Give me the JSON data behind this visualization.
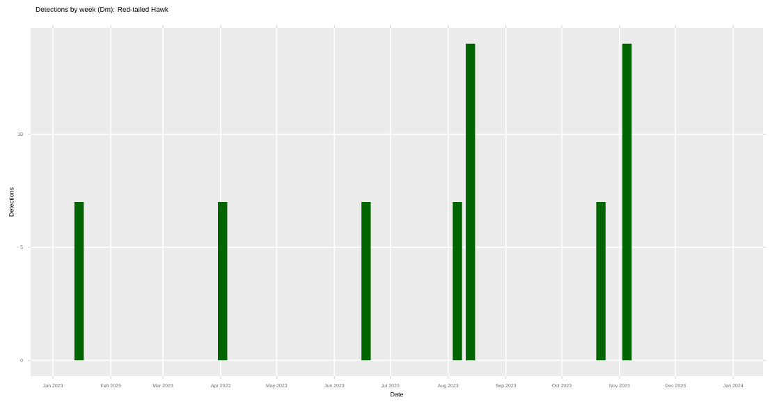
{
  "chart_data": {
    "type": "bar",
    "title": "Detections by week (Dm): Red-tailed Hawk",
    "xlabel": "Date",
    "ylabel": "Detections",
    "x": [
      "2023-01-15",
      "2023-04-02",
      "2023-06-18",
      "2023-08-06",
      "2023-08-13",
      "2023-10-22",
      "2023-11-05"
    ],
    "values": [
      7,
      7,
      7,
      7,
      14,
      7,
      14
    ],
    "color": "#006400",
    "xlim": [
      "2022-12-20",
      "2024-01-17"
    ],
    "xticks": [
      {
        "value": "2023-01-01",
        "label": "Jan 2023"
      },
      {
        "value": "2023-02-01",
        "label": "Feb 2023"
      },
      {
        "value": "2023-03-01",
        "label": "Mar 2023"
      },
      {
        "value": "2023-04-01",
        "label": "Apr 2023"
      },
      {
        "value": "2023-05-01",
        "label": "May 2023"
      },
      {
        "value": "2023-06-01",
        "label": "Jun 2023"
      },
      {
        "value": "2023-07-01",
        "label": "Jul 2023"
      },
      {
        "value": "2023-08-01",
        "label": "Aug 2023"
      },
      {
        "value": "2023-09-01",
        "label": "Sep 2023"
      },
      {
        "value": "2023-10-01",
        "label": "Oct 2023"
      },
      {
        "value": "2023-11-01",
        "label": "Nov 2023"
      },
      {
        "value": "2023-12-01",
        "label": "Dec 2023"
      },
      {
        "value": "2024-01-01",
        "label": "Jan 2024"
      }
    ],
    "ylim": [
      -0.7,
      14.7
    ],
    "yticks": [
      0,
      5,
      10
    ],
    "grid": true
  }
}
